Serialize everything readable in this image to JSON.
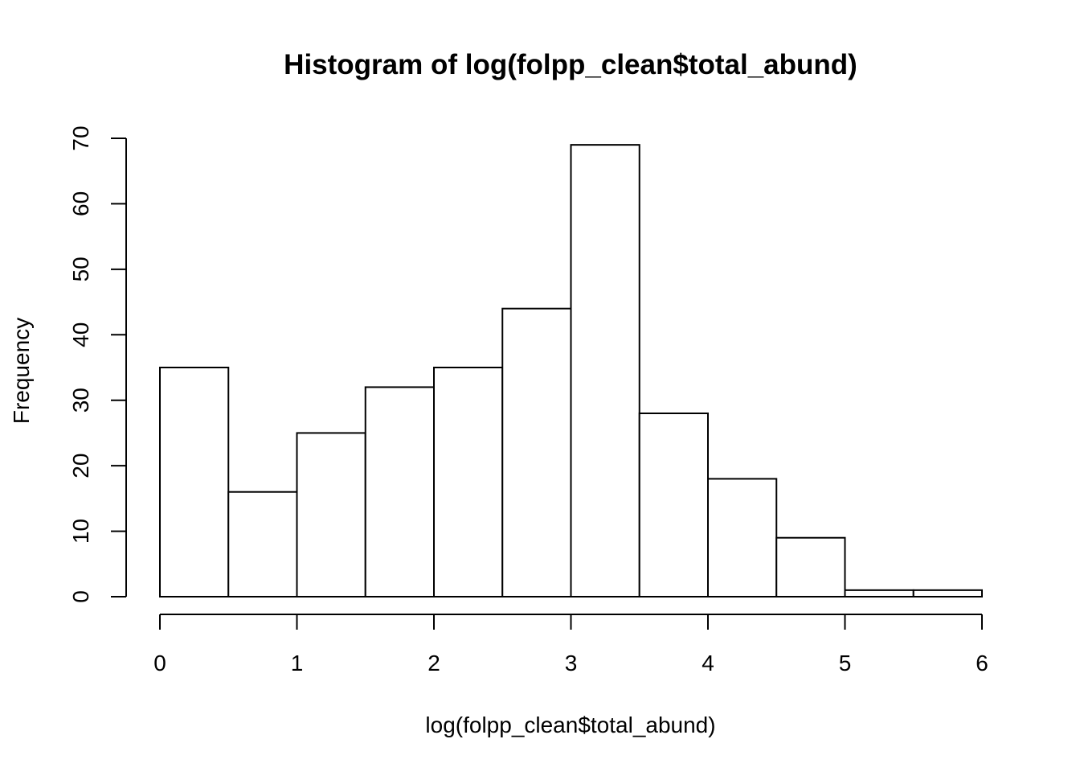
{
  "chart_data": {
    "type": "bar",
    "title": "Histogram of log(folpp_clean$total_abund)",
    "xlabel": "log(folpp_clean$total_abund)",
    "ylabel": "Frequency",
    "bins": [
      {
        "start": 0.0,
        "end": 0.5,
        "count": 35
      },
      {
        "start": 0.5,
        "end": 1.0,
        "count": 16
      },
      {
        "start": 1.0,
        "end": 1.5,
        "count": 25
      },
      {
        "start": 1.5,
        "end": 2.0,
        "count": 32
      },
      {
        "start": 2.0,
        "end": 2.5,
        "count": 35
      },
      {
        "start": 2.5,
        "end": 3.0,
        "count": 44
      },
      {
        "start": 3.0,
        "end": 3.5,
        "count": 69
      },
      {
        "start": 3.5,
        "end": 4.0,
        "count": 28
      },
      {
        "start": 4.0,
        "end": 4.5,
        "count": 18
      },
      {
        "start": 4.5,
        "end": 5.0,
        "count": 9
      },
      {
        "start": 5.0,
        "end": 5.5,
        "count": 1
      },
      {
        "start": 5.5,
        "end": 6.0,
        "count": 1
      }
    ],
    "xlim": [
      0,
      6
    ],
    "ylim": [
      0,
      70
    ],
    "xticks": [
      0,
      1,
      2,
      3,
      4,
      5,
      6
    ],
    "yticks": [
      0,
      10,
      20,
      30,
      40,
      50,
      60,
      70
    ],
    "grid": false,
    "legend": "none",
    "colors": {
      "bar_fill": "#ffffff",
      "bar_stroke": "#000000"
    }
  }
}
